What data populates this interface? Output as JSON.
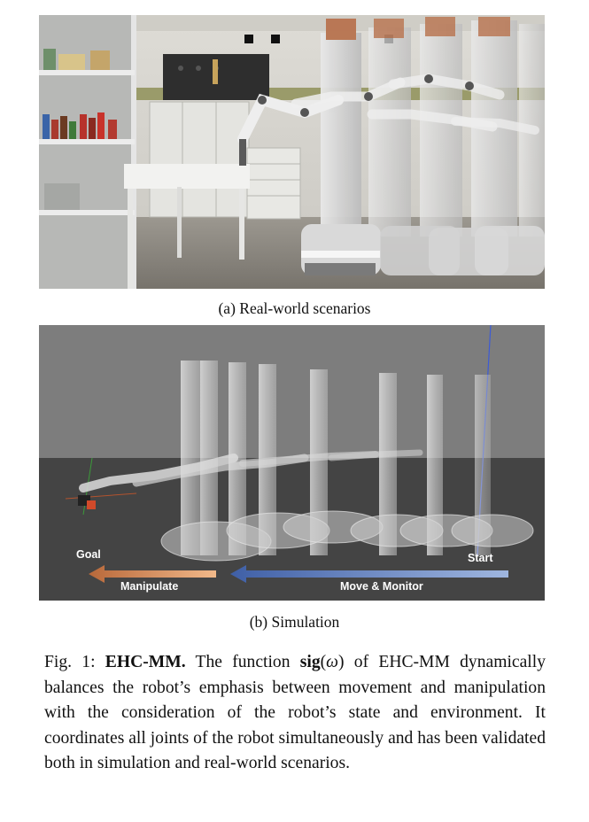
{
  "figure_a": {
    "subcaption": "(a) Real-world scenarios"
  },
  "figure_b": {
    "subcaption": "(b) Simulation",
    "labels": {
      "goal": "Goal",
      "start": "Start",
      "manipulate": "Manipulate",
      "move_monitor": "Move & Monitor"
    },
    "colors": {
      "background_upper": "#7d7d7d",
      "floor": "#444444",
      "manipulate_arrow": "#d9834a",
      "move_arrow": "#5f7fc0"
    }
  },
  "caption": {
    "prefix": "Fig. 1: ",
    "title": "EHC-MM.",
    "text_1": " The function ",
    "func_name": "sig",
    "func_open": "(",
    "func_var": "ω",
    "func_close": ")",
    "text_2": " of EHC-MM dynamically balances the robot’s emphasis between movement and manipulation with the consideration of the robot’s state and environment. It coordinates all joints of the robot simultaneously and has been validated both in simulation and real-world scenarios."
  }
}
